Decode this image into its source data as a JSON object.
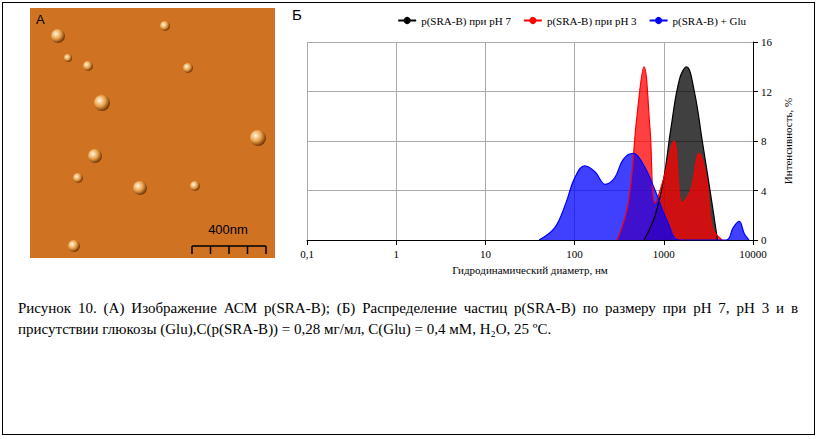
{
  "figure": {
    "panel_a": {
      "letter": "А",
      "scale_bar": "400nm"
    },
    "panel_b": {
      "letter": "Б"
    },
    "caption": "Рисунок 10. (А) Изображение АСМ p(SRA-B); (Б) Распределение частиц p(SRA-B) по размеру при pH 7, pH 3 и в присутствии глюкозы (Glu),C(p(SRA-B)) = 0,28 мг/мл, C(Glu) = 0,4 мМ, H₂O, 25 ºC."
  },
  "chart_data": {
    "type": "area",
    "xlabel": "Гидродинамический диаметр, нм",
    "ylabel": "Интенсивность, %",
    "log": "x",
    "grid": true,
    "legend": "upper right",
    "xlim": [
      0.1,
      10000
    ],
    "xticks": [
      {
        "value": 0.1,
        "label": "0,1"
      },
      1,
      10,
      100,
      1000,
      10000
    ],
    "ylim": [
      0,
      16
    ],
    "yticks": [
      0,
      4,
      8,
      12,
      16
    ],
    "series": [
      {
        "name": "p(SRA-B) при pH 7",
        "color": "#000000",
        "x": [
          600,
          800,
          1000,
          1200,
          1500,
          1800,
          2200,
          2700,
          3300,
          4000
        ],
        "values": [
          0,
          2,
          5,
          9,
          13,
          14,
          12,
          8,
          4,
          0
        ]
      },
      {
        "name": "p(SRA-B) при pH 3",
        "color": "#ff0000",
        "x": [
          300,
          400,
          500,
          600,
          700,
          800,
          1000,
          1300,
          1600,
          2000,
          2500,
          3000,
          3500,
          4500
        ],
        "values": [
          0,
          3,
          10,
          14,
          9,
          3,
          5,
          8,
          3,
          4,
          7,
          5,
          1,
          0
        ]
      },
      {
        "name": "p(SRA-B) + Glu",
        "color": "#0000ff",
        "x": [
          40,
          60,
          80,
          100,
          130,
          170,
          220,
          280,
          350,
          450,
          600,
          800,
          1100,
          1500,
          5000,
          6000,
          7000,
          8000,
          9000
        ],
        "values": [
          0,
          1,
          3,
          5,
          6,
          5.5,
          4.5,
          5,
          6.5,
          7,
          6,
          4,
          1.5,
          0,
          0,
          1,
          1.5,
          0.5,
          0
        ]
      }
    ]
  }
}
